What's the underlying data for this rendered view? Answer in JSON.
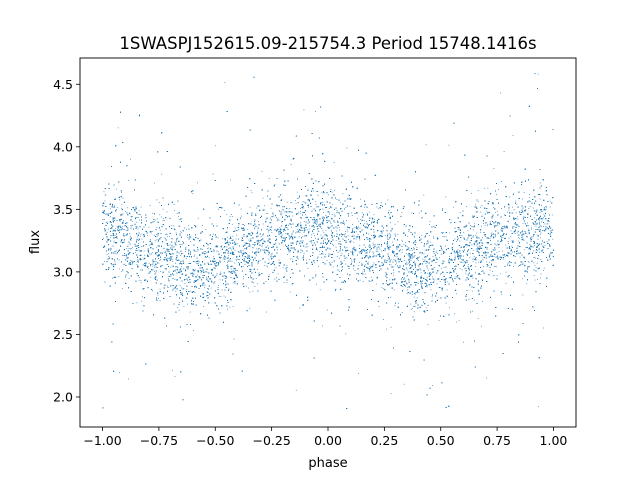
{
  "chart_data": {
    "type": "scatter",
    "title": "1SWASPJ152615.09-215754.3 Period 15748.1416s",
    "xlabel": "phase",
    "ylabel": "flux",
    "xlim": [
      -1.1,
      1.1
    ],
    "ylim": [
      1.76,
      4.71
    ],
    "x_ticks": [
      -1.0,
      -0.75,
      -0.5,
      -0.25,
      0.0,
      0.25,
      0.5,
      0.75,
      1.0
    ],
    "x_tick_labels": [
      "−1.00",
      "−0.75",
      "−0.50",
      "−0.25",
      "0.00",
      "0.25",
      "0.50",
      "0.75",
      "1.00"
    ],
    "y_ticks": [
      2.0,
      2.5,
      3.0,
      3.5,
      4.0,
      4.5
    ],
    "y_tick_labels": [
      "2.0",
      "2.5",
      "3.0",
      "3.5",
      "4.0",
      "4.5"
    ],
    "grid": false,
    "legend": "none",
    "marker_color": "#1f77b4",
    "series": [
      {
        "phase_range": [
          -1.0,
          1.0
        ],
        "point_count": 20000,
        "mean_flux_curve": {
          "x": [
            -1.0,
            -0.75,
            -0.55,
            -0.35,
            -0.25,
            -0.05,
            0.2,
            0.45,
            0.65,
            0.75,
            1.0
          ],
          "y": [
            3.33,
            3.15,
            3.02,
            3.18,
            3.28,
            3.34,
            3.2,
            3.02,
            3.16,
            3.28,
            3.35
          ]
        },
        "core_spread": 0.18,
        "outlier_range": [
          1.9,
          4.6
        ]
      }
    ]
  }
}
